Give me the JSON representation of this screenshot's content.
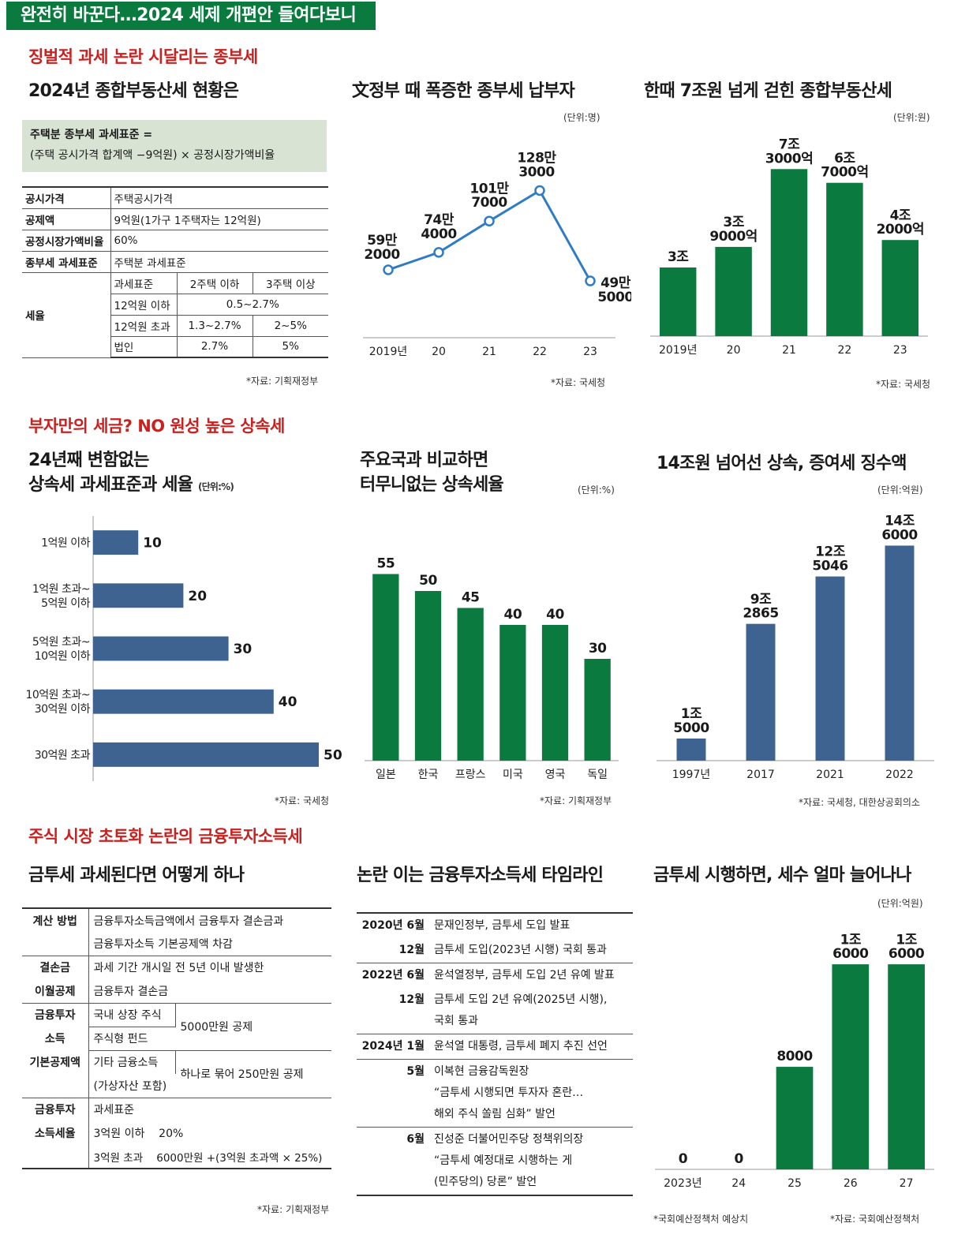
{
  "banner": "완전히 바꾼다…2024 세제 개편안 들여다보니",
  "sections": {
    "s1": "징벌적 과세 논란 시달리는 종부세",
    "s2": "부자만의 세금? NO 원성 높은 상속세",
    "s3": "주식 시장 초토화 논란의 금융투자소득세"
  },
  "p1": {
    "title": "2024년 종합부동산세 현황은",
    "formula_line1": "주택분 종부세 과세표준 =",
    "formula_line2": "(주택 공시가격 합계액 −9억원) × 공정시장가액비율",
    "rows": [
      {
        "k": "공시가격",
        "v": "주택공시가격"
      },
      {
        "k": "공제액",
        "v": "9억원(1가구 1주택자는 12억원)"
      },
      {
        "k": "공정시장가액비율",
        "v": "60%"
      },
      {
        "k": "종부세 과세표준",
        "v": "주택분 과세표준"
      }
    ],
    "rate_label": "세율",
    "rate_head": [
      "과세표준",
      "2주택 이하",
      "3주택 이상"
    ],
    "rate_rows": [
      [
        "12억원 이하",
        "0.5~2.7%",
        ""
      ],
      [
        "12억원 초과",
        "1.3~2.7%",
        "2~5%"
      ],
      [
        "법인",
        "2.7%",
        "5%"
      ]
    ],
    "source": "*자료: 기획재정부"
  },
  "p4": {
    "title_l1": "금투세 과세된다면 어떻게 하나",
    "rows": {
      "calc_k": "계산 방법",
      "calc_v1": "금융투자소득금액에서 금융투자 결손금과",
      "calc_v2": "금융투자소득 기본공제액 차감",
      "loss_k1": "결손금",
      "loss_k2": "이월공제",
      "loss_v1": "과세 기간 개시일 전 5년 이내 발생한",
      "loss_v2": "금융투자 결손금",
      "ded_k1": "금융투자",
      "ded_k2": "소득",
      "ded_k3": "기본공제액",
      "ded_a": "국내 상장 주식",
      "ded_b": "주식형 펀드",
      "ded_ab": "5000만원 공제",
      "ded_c1": "기타 금융소득",
      "ded_c2": "(가상자산 포함)",
      "ded_cv": "하나로 묶어 250만원 공제",
      "tax_k1": "금융투자",
      "tax_k2": "소득세율",
      "tax_v1": "과세표준",
      "tax_v2": "3억원 이하    20%",
      "tax_v3": "3억원 초과    6000만원 +(3억원 초과액 × 25%)"
    },
    "source": "*자료: 기획재정부"
  },
  "p5": {
    "title": "논란 이는 금융투자소득세 타임라인",
    "items": [
      {
        "d": "2020년 6월",
        "t": [
          "문재인정부, 금투세 도입 발표"
        ]
      },
      {
        "d": "12월",
        "t": [
          "금투세 도입(2023년 시행) 국회 통과"
        ]
      },
      {
        "d": "2022년 6월",
        "t": [
          "윤석열정부, 금투세 도입 2년 유예 발표"
        ]
      },
      {
        "d": "12월",
        "t": [
          "금투세 도입 2년 유예(2025년 시행),",
          "국회 통과"
        ]
      },
      {
        "d": "2024년 1월",
        "t": [
          "윤석열 대통령, 금투세 폐지 추진 선언"
        ]
      },
      {
        "d": "5월",
        "t": [
          "이복현 금융감독원장",
          "“금투세 시행되면 투자자 혼란…",
          "해외 주식 쏠림 심화” 발언"
        ]
      },
      {
        "d": "6월",
        "t": [
          "진성준 더불어민주당 정책위의장",
          "“금투세 예정대로 시행하는 게",
          "(민주당의) 당론” 발언"
        ]
      }
    ]
  },
  "colors": {
    "green": "#0b7a3e",
    "blue": "#3e6391",
    "line": "#2f7cc4",
    "red": "#c8211f"
  },
  "chart_data": [
    {
      "type": "line",
      "title": "文정부 때 폭증한 종부세 납부자",
      "unit": "(단위:명)",
      "categories": [
        "2019년",
        "20",
        "21",
        "22",
        "23"
      ],
      "values": [
        592000,
        744000,
        1017000,
        1283000,
        495000
      ],
      "labels": [
        [
          "59만",
          "2000"
        ],
        [
          "74만",
          "4000"
        ],
        [
          "101만",
          "7000"
        ],
        [
          "128만",
          "3000"
        ],
        [
          "49만",
          "5000"
        ]
      ],
      "ylim": [
        0,
        1500000
      ],
      "source": "*자료: 국세청"
    },
    {
      "type": "bar",
      "title": "한때 7조원 넘게 걷힌 종합부동산세",
      "unit": "(단위:원)",
      "categories": [
        "2019년",
        "20",
        "21",
        "22",
        "23"
      ],
      "values": [
        30000,
        39000,
        73000,
        67000,
        42000
      ],
      "labels": [
        [
          "3조"
        ],
        [
          "3조",
          "9000억"
        ],
        [
          "7조",
          "3000억"
        ],
        [
          "6조",
          "7000억"
        ],
        [
          "4조",
          "2000억"
        ]
      ],
      "ylim": [
        0,
        80000
      ],
      "source": "*자료: 국세청"
    },
    {
      "type": "bar",
      "orientation": "horizontal",
      "title_l1": "24년째 변함없는",
      "title_l2": "상속세 과세표준과 세율",
      "unit": "(단위:%)",
      "categories": [
        [
          "1억원 이하"
        ],
        [
          "1억원 초과~",
          "5억원 이하"
        ],
        [
          "5억원 초과~",
          "10억원 이하"
        ],
        [
          "10억원 초과~",
          "30억원 이하"
        ],
        [
          "30억원 초과"
        ]
      ],
      "values": [
        10,
        20,
        30,
        40,
        50
      ],
      "xlim": [
        0,
        50
      ],
      "source": "*자료: 국세청"
    },
    {
      "type": "bar",
      "title_l1": "주요국과 비교하면",
      "title_l2": "터무니없는 상속세율",
      "unit": "(단위:%)",
      "categories": [
        "일본",
        "한국",
        "프랑스",
        "미국",
        "영국",
        "독일"
      ],
      "values": [
        55,
        50,
        45,
        40,
        40,
        30
      ],
      "ylim": [
        0,
        60
      ],
      "source": "*자료: 기획재정부"
    },
    {
      "type": "bar",
      "title": "14조원 넘어선 상속, 증여세 징수액",
      "unit": "(단위:억원)",
      "categories": [
        "1997년",
        "2017",
        "2021",
        "2022"
      ],
      "values": [
        15000,
        92865,
        125046,
        146000
      ],
      "labels": [
        [
          "1조",
          "5000"
        ],
        [
          "9조",
          "2865"
        ],
        [
          "12조",
          "5046"
        ],
        [
          "14조",
          "6000"
        ]
      ],
      "ylim": [
        0,
        150000
      ],
      "source": "*자료: 국세청, 대한상공회의소"
    },
    {
      "type": "bar",
      "title": "금투세 시행하면, 세수 얼마 늘어나나",
      "unit": "(단위:억원)",
      "categories": [
        "2023년",
        "24",
        "25",
        "26",
        "27"
      ],
      "values": [
        0,
        0,
        8000,
        16000,
        16000
      ],
      "labels": [
        [
          "0"
        ],
        [
          "0"
        ],
        [
          "8000"
        ],
        [
          "1조",
          "6000"
        ],
        [
          "1조",
          "6000"
        ]
      ],
      "ylim": [
        0,
        16500
      ],
      "note": "*국회예산정책처 예상치",
      "source": "*자료: 국회예산정책처"
    }
  ]
}
